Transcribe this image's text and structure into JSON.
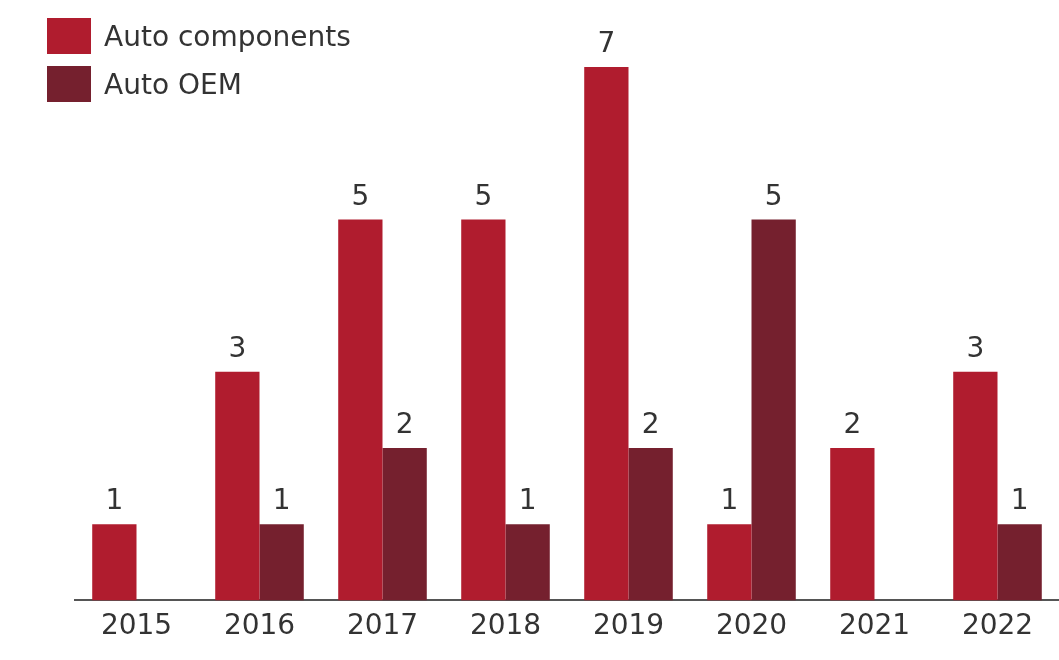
{
  "chart_data": {
    "type": "bar",
    "categories": [
      "2015",
      "2016",
      "2017",
      "2018",
      "2019",
      "2020",
      "2021",
      "2022"
    ],
    "series": [
      {
        "name": "Auto components",
        "color": "#b01c2e",
        "values": [
          1,
          3,
          5,
          5,
          7,
          1,
          2,
          3
        ]
      },
      {
        "name": "Auto OEM",
        "color": "#75202e",
        "values": [
          null,
          1,
          2,
          1,
          2,
          5,
          null,
          1
        ]
      }
    ],
    "data_labels": true,
    "legend": "top left",
    "grid": false
  }
}
